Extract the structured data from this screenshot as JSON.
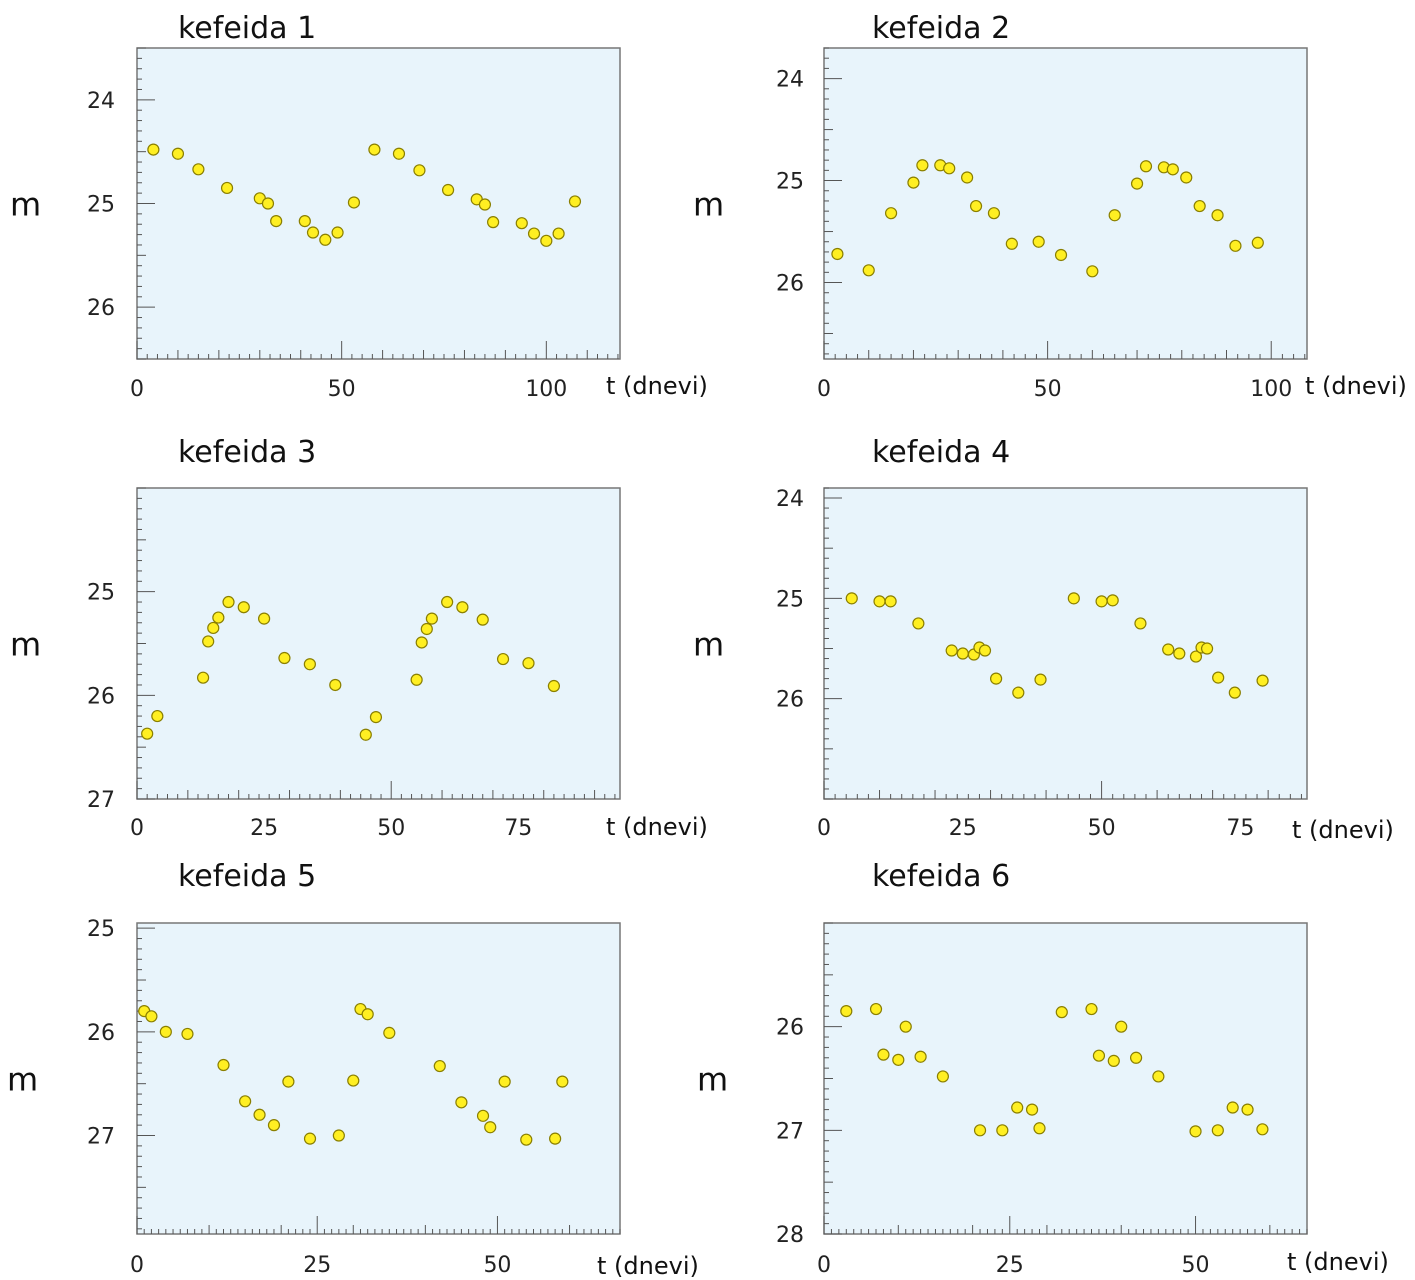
{
  "chart_data": [
    {
      "type": "scatter",
      "title": "kefeida 1",
      "xlabel": "t (dnevi)",
      "ylabel": "m",
      "xlim": [
        0,
        118
      ],
      "ylim": [
        26.5,
        23.5
      ],
      "xticks": [
        0,
        50,
        100
      ],
      "yticks": [
        24,
        25,
        26
      ],
      "x": [
        4,
        10,
        15,
        22,
        30,
        32,
        34,
        41,
        43,
        46,
        49,
        53,
        58,
        64,
        69,
        76,
        83,
        85,
        87,
        94,
        97,
        100,
        103,
        107
      ],
      "y": [
        24.48,
        24.52,
        24.67,
        24.85,
        24.95,
        25.0,
        25.17,
        25.17,
        25.28,
        25.35,
        25.28,
        24.99,
        24.48,
        24.52,
        24.68,
        24.87,
        24.96,
        25.01,
        25.18,
        25.19,
        25.29,
        25.36,
        25.29,
        24.98
      ]
    },
    {
      "type": "scatter",
      "title": "kefeida 2",
      "xlabel": "t (dnevi)",
      "ylabel": "m",
      "xlim": [
        0,
        108
      ],
      "ylim": [
        26.75,
        23.7
      ],
      "xticks": [
        0,
        50,
        100
      ],
      "yticks": [
        24,
        25,
        26
      ],
      "x": [
        3,
        10,
        15,
        20,
        22,
        26,
        28,
        32,
        34,
        38,
        42,
        48,
        53,
        60,
        65,
        70,
        72,
        76,
        78,
        81,
        84,
        88,
        92,
        97
      ],
      "y": [
        25.72,
        25.88,
        25.32,
        25.02,
        24.85,
        24.85,
        24.88,
        24.97,
        25.25,
        25.32,
        25.62,
        25.6,
        25.73,
        25.89,
        25.34,
        25.03,
        24.86,
        24.87,
        24.89,
        24.97,
        25.25,
        25.34,
        25.64,
        25.61
      ]
    },
    {
      "type": "scatter",
      "title": "kefeida 3",
      "xlabel": "t (dnevi)",
      "ylabel": "m",
      "xlim": [
        0,
        95
      ],
      "ylim": [
        27.0,
        24.0
      ],
      "xticks": [
        0,
        25,
        50,
        75
      ],
      "yticks": [
        25,
        26,
        27
      ],
      "x": [
        2,
        4,
        13,
        14,
        15,
        16,
        18,
        21,
        25,
        29,
        34,
        39,
        45,
        47,
        55,
        56,
        57,
        58,
        61,
        64,
        68,
        72,
        77,
        82
      ],
      "y": [
        26.37,
        26.2,
        25.83,
        25.48,
        25.35,
        25.25,
        25.1,
        25.15,
        25.26,
        25.64,
        25.7,
        25.9,
        26.38,
        26.21,
        25.85,
        25.49,
        25.36,
        25.26,
        25.1,
        25.15,
        25.27,
        25.65,
        25.69,
        25.91
      ]
    },
    {
      "type": "scatter",
      "title": "kefeida 4",
      "xlabel": "t (dnevi)",
      "ylabel": "m",
      "xlim": [
        0,
        87
      ],
      "ylim": [
        27.0,
        23.9
      ],
      "xticks": [
        0,
        25,
        50,
        75
      ],
      "yticks": [
        24,
        25,
        26
      ],
      "x": [
        5,
        10,
        12,
        17,
        23,
        25,
        27,
        28,
        29,
        31,
        35,
        39,
        45,
        50,
        52,
        57,
        62,
        64,
        67,
        68,
        69,
        71,
        74,
        79
      ],
      "y": [
        25.0,
        25.03,
        25.03,
        25.25,
        25.52,
        25.55,
        25.56,
        25.49,
        25.52,
        25.8,
        25.94,
        25.81,
        25.0,
        25.03,
        25.02,
        25.25,
        25.51,
        25.55,
        25.58,
        25.49,
        25.5,
        25.79,
        25.94,
        25.82
      ]
    },
    {
      "type": "scatter",
      "title": "kefeida 5",
      "xlabel": "t (dnevi)",
      "ylabel": "m",
      "xlim": [
        0,
        67
      ],
      "ylim": [
        27.95,
        24.95
      ],
      "xticks": [
        0,
        25,
        50
      ],
      "yticks": [
        25,
        26,
        27
      ],
      "x": [
        1,
        2,
        4,
        7,
        12,
        15,
        17,
        19,
        21,
        24,
        28,
        30,
        31,
        32,
        35,
        42,
        45,
        48,
        49,
        51,
        54,
        58,
        59
      ],
      "y": [
        25.8,
        25.85,
        26.0,
        26.02,
        26.32,
        26.67,
        26.8,
        26.9,
        26.48,
        27.03,
        27.0,
        26.47,
        25.78,
        25.83,
        26.01,
        26.33,
        26.68,
        26.81,
        26.92,
        26.48,
        27.04,
        27.03,
        26.48
      ]
    },
    {
      "type": "scatter",
      "title": "kefeida 6",
      "xlabel": "t (dnevi)",
      "ylabel": "m",
      "xlim": [
        0,
        65
      ],
      "ylim": [
        28.0,
        25.0
      ],
      "xticks": [
        0,
        25,
        50
      ],
      "yticks": [
        26,
        27,
        28
      ],
      "x": [
        3,
        7,
        8,
        10,
        11,
        13,
        16,
        21,
        24,
        26,
        28,
        29,
        32,
        36,
        37,
        39,
        40,
        42,
        45,
        50,
        53,
        55,
        57,
        59
      ],
      "y": [
        25.85,
        25.83,
        26.27,
        26.32,
        26.0,
        26.29,
        26.48,
        27.0,
        27.0,
        26.78,
        26.8,
        26.98,
        25.86,
        25.83,
        26.28,
        26.33,
        26.0,
        26.3,
        26.48,
        27.01,
        27.0,
        26.78,
        26.8,
        26.99
      ]
    }
  ]
}
